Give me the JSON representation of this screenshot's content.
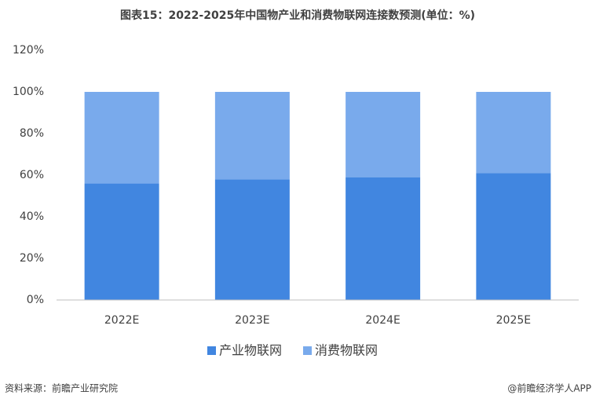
{
  "chart_data": {
    "type": "stacked_bar",
    "title": "图表15：2022-2025年中国物产业和消费物联网连接数预测(单位：%)",
    "categories": [
      "2022E",
      "2023E",
      "2024E",
      "2025E"
    ],
    "series": [
      {
        "name": "产业物联网",
        "color": "#4186e0",
        "values": [
          56,
          58,
          59,
          61
        ]
      },
      {
        "name": "消费物联网",
        "color": "#79aaec",
        "values": [
          44,
          42,
          41,
          39
        ]
      }
    ],
    "ylim": [
      0,
      120
    ],
    "yticks": [
      {
        "value": 0,
        "label": "0%"
      },
      {
        "value": 20,
        "label": "20%"
      },
      {
        "value": 40,
        "label": "40%"
      },
      {
        "value": 60,
        "label": "60%"
      },
      {
        "value": 80,
        "label": "80%"
      },
      {
        "value": 100,
        "label": "100%"
      },
      {
        "value": 120,
        "label": "120%"
      }
    ],
    "grid": false,
    "legend": "bottom",
    "source": "资料来源：前瞻产业研究院",
    "credit": "@前瞻经济学人APP"
  }
}
